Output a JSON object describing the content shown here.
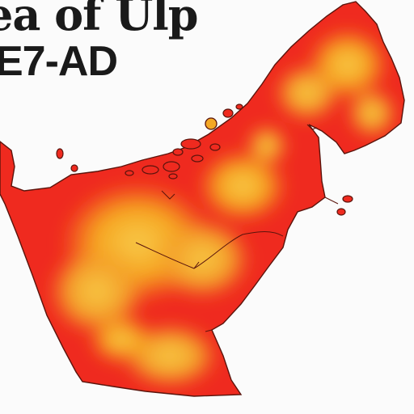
{
  "title": {
    "line1": "ea of Ulp",
    "line2": "E7-AD"
  },
  "colors": {
    "land_hot": "#ef2a1f",
    "land_warm": "#f7a11a",
    "land_mid": "#f8c23a",
    "outline": "#6a1a10",
    "background": "#fbfbfb",
    "marker": "#f4a825"
  },
  "map": {
    "kind": "heatmap",
    "region_shape": "coastline outline with islands",
    "marker_icon": "location-dot-icon"
  }
}
